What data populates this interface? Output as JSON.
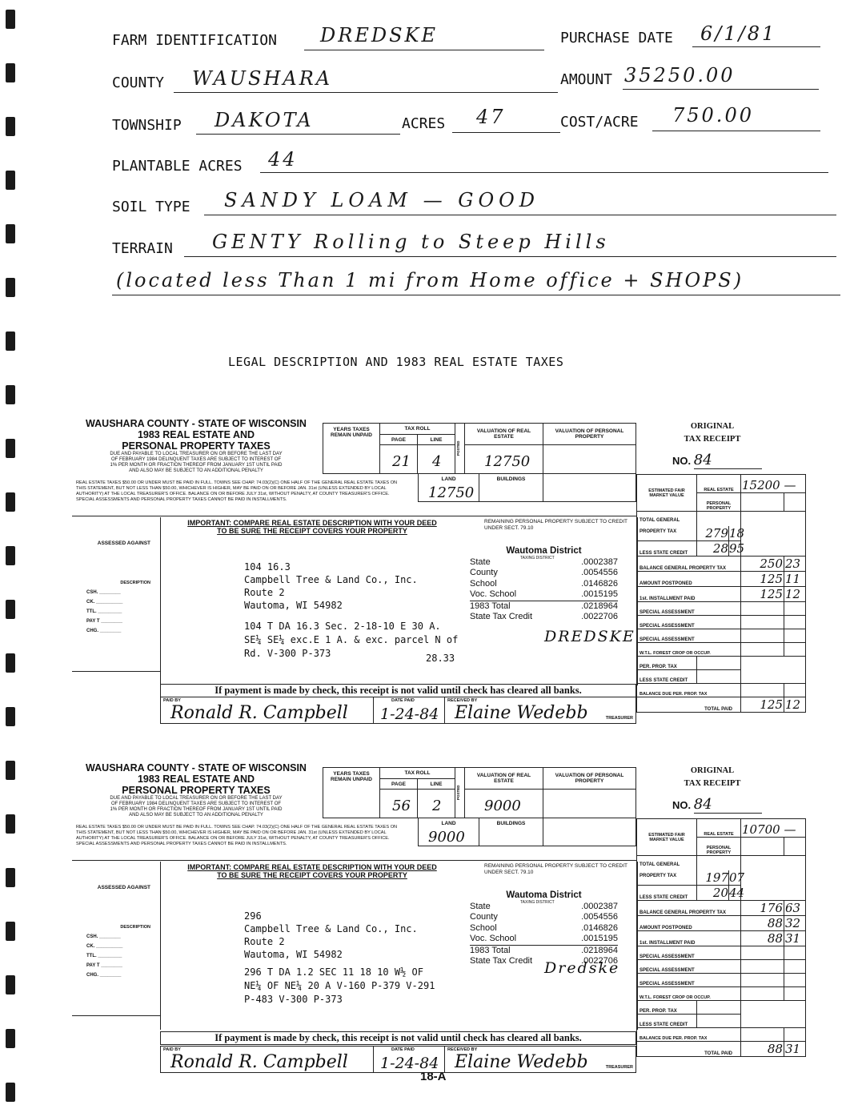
{
  "farm": {
    "identification_label": "FARM IDENTIFICATION",
    "identification": "DREDSKE",
    "purchase_date_label": "PURCHASE DATE",
    "purchase_date": "6/1/81",
    "county_label": "COUNTY",
    "county": "WAUSHARA",
    "amount_label": "AMOUNT",
    "amount": "35250.00",
    "township_label": "TOWNSHIP",
    "township": "DAKOTA",
    "acres_label": "ACRES",
    "acres": "47",
    "cost_acre_label": "COST/ACRE",
    "cost_acre": "750.00",
    "plantable_label": "PLANTABLE ACRES",
    "plantable": "44",
    "soil_label": "SOIL TYPE",
    "soil": "SANDY LOAM — GOOD",
    "terrain_label": "TERRAIN",
    "terrain": "GENTY Rolling to Steep Hills",
    "note": "(located less Than 1 mi from Home office + SHOPS)"
  },
  "section_title": "LEGAL DESCRIPTION AND 1983 REAL ESTATE TAXES",
  "form": {
    "county_line": "WAUSHARA COUNTY - STATE OF WISCONSIN",
    "year_line": "1983 REAL ESTATE AND",
    "type_line": "PERSONAL PROPERTY TAXES",
    "due_text": "DUE AND PAYABLE TO LOCAL TREASURER ON OR BEFORE THE LAST DAY OF FEBRUARY 1984 DELINQUENT TAXES ARE SUBJECT TO INTEREST OF 1% PER MONTH OR FRACTION THEREOF FROM JANUARY 1ST UNTIL PAID AND ALSO MAY BE SUBJECT TO AN ADDITIONAL PENALTY",
    "fine_print": "REAL ESTATE TAXES $50.00 OR UNDER MUST BE PAID IN FULL. TOWNS SEE CHAP. 74.03(2)(C) ONE HALF OF THE GENERAL REAL ESTATE TAXES ON THIS STATEMENT, BUT NOT LESS THAN $50.00, WHICHEVER IS HIGHER, MAY BE PAID ON OR BEFORE JAN. 31st (UNLESS EXTENDED BY LOCAL AUTHORITY) AT THE LOCAL TREASURER'S OFFICE. BALANCE ON OR BEFORE JULY 31st, WITHOUT PENALTY, AT COUNTY TREASURER'S OFFICE. SPECIAL ASSESSMENTS AND PERSONAL PROPERTY TAXES CANNOT BE PAID IN INSTALLMENTS.",
    "years_unpaid": "YEARS TAXES REMAIN UNPAID",
    "tax_roll": "TAX ROLL",
    "page": "PAGE",
    "line": "LINE",
    "posted": "POSTED",
    "valuation_re": "VALUATION OF REAL ESTATE",
    "valuation_pp": "VALUATION OF PERSONAL PROPERTY",
    "land": "LAND",
    "buildings": "BUILDINGS",
    "original": "ORIGINAL",
    "tax_receipt": "TAX RECEIPT",
    "no": "NO.",
    "est_fair": "ESTIMATED FAIR MARKET VALUE",
    "real_estate": "REAL ESTATE",
    "personal_property": "PERSONAL PROPERTY",
    "total_general": "TOTAL GENERAL PROPERTY TAX",
    "less_state_credit": "LESS STATE CREDIT",
    "balance_general": "BALANCE GENERAL PROPERTY TAX",
    "amount_postponed": "AMOUNT POSTPONED",
    "first_installment": "1st. INSTALLMENT PAID",
    "special_assessment": "SPECIAL ASSESSMENT",
    "wtl": "W.T.L. FOREST CROP OR OCCUP.",
    "per_prop_tax": "PER. PROP. TAX",
    "balance_due_pp": "BALANCE DUE PER. PROP. TAX",
    "total_paid": "TOTAL PAID",
    "important_1": "IMPORTANT: COMPARE REAL ESTATE DESCRIPTION WITH YOUR DEED",
    "important_2": "TO BE SURE THE RECEIPT COVERS YOUR PROPERTY",
    "remaining": "REMAINING PERSONAL PROPERTY SUBJECT TO CREDIT UNDER SECT. 79.10",
    "assessed_against": "ASSESSED AGAINST",
    "description": "DESCRIPTION",
    "csh": "CSH.",
    "ck": "CK.",
    "ttl": "TTL.",
    "payt": "PAY T",
    "chg": "CHG.",
    "taxing_district": "TAXING DISTRICT",
    "check_notice": "If payment is made by check, this receipt is not valid until check has cleared all banks.",
    "paid_by": "PAID BY",
    "date_paid": "DATE PAID",
    "received_by": "RECEIVED BY",
    "treasurer": "TREASURER"
  },
  "receipts": [
    {
      "page": "21",
      "line": "4",
      "valuation": "12750",
      "land": "12750",
      "receipt_no": "84",
      "fair_real_estate": "15200 —",
      "total_general": [
        "279",
        "18"
      ],
      "less_credit": [
        "28",
        "95"
      ],
      "balance": [
        "250",
        "23"
      ],
      "postponed": [
        "125",
        "11"
      ],
      "first_inst": [
        "125",
        "12"
      ],
      "total_paid": [
        "125",
        "12"
      ],
      "district": "Wautoma District",
      "rates": [
        {
          "label": "State",
          "value": ".0002387"
        },
        {
          "label": "County",
          "value": ".0054556"
        },
        {
          "label": "School",
          "value": ".0146826"
        },
        {
          "label": "Voc. School",
          "value": ".0015195"
        },
        {
          "label": "1983 Total",
          "value": ".0218964"
        },
        {
          "label": "State Tax Credit",
          "value": ".0022706"
        }
      ],
      "address": [
        "104  16.3",
        "Campbell Tree & Land Co., Inc.",
        "Route 2",
        "Wautoma, WI  54982"
      ],
      "legal": [
        "104  T DA 16.3 Sec. 2-18-10  E 30 A.",
        "SE¼ SE¼ exc.E 1 A. & exc. parcel N of",
        "Rd. V-300 P-373"
      ],
      "annotation": "DREDSKE",
      "amount": "28.33",
      "paid_by": "Ronald R. Campbell",
      "date_paid": "1-24-84",
      "received_by": "Elaine Wedebb"
    },
    {
      "page": "56",
      "line": "2",
      "valuation": "9000",
      "land": "9000",
      "receipt_no": "84",
      "fair_real_estate": "10700 —",
      "total_general": [
        "197",
        "07"
      ],
      "less_credit": [
        "20",
        "44"
      ],
      "balance": [
        "176",
        "63"
      ],
      "postponed": [
        "88",
        "32"
      ],
      "first_inst": [
        "88",
        "31"
      ],
      "total_paid": [
        "88",
        "31"
      ],
      "district": "Wautoma District",
      "rates": [
        {
          "label": "State",
          "value": ".0002387"
        },
        {
          "label": "County",
          "value": ".0054556"
        },
        {
          "label": "School",
          "value": ".0146826"
        },
        {
          "label": "Voc. School",
          "value": ".0015195"
        },
        {
          "label": "1983 Total",
          "value": ".0218964"
        },
        {
          "label": "State Tax Credit",
          "value": ".0022706"
        }
      ],
      "address": [
        "296",
        "Campbell Tree  & Land Co., Inc.",
        "Route 2",
        "Wautoma, WI  54982"
      ],
      "legal": [
        "296  T DA 1.2 SEC 11 18 10  W½ OF",
        "NE¼ OF NE¼  20 A  V-160 P-379 V-291",
        "P-483  V-300 P-373"
      ],
      "annotation": "Dredske",
      "amount": "",
      "paid_by": "Ronald R. Campbell",
      "date_paid": "1-24-84",
      "received_by": "Elaine Wedebb"
    }
  ],
  "page_number": "18-A"
}
